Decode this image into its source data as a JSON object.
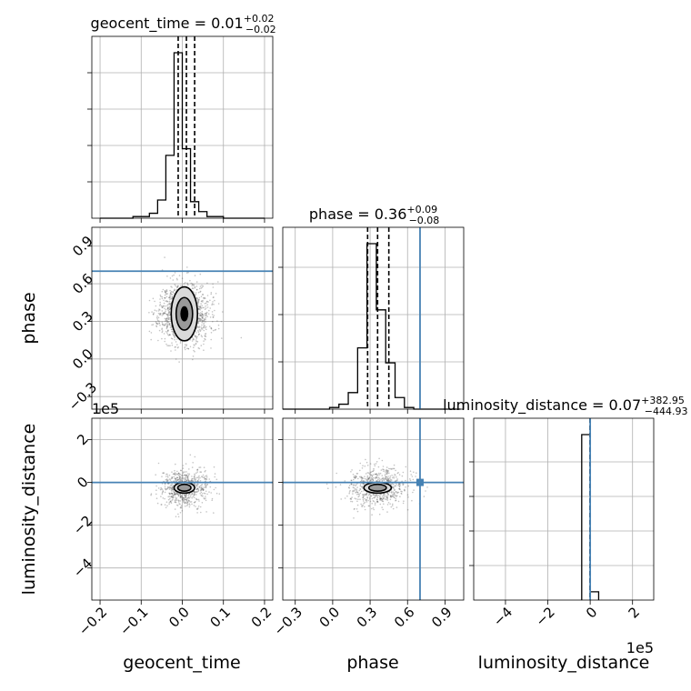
{
  "chart_data": [
    {
      "type": "histogram",
      "panel": "geocent_time-marginal",
      "title_prefix": "geocent_time = 0.01",
      "title_sup": "+0.02",
      "title_sub": "−0.02",
      "xlim": [
        -0.22,
        0.22
      ],
      "bins": [
        -0.2,
        -0.18,
        -0.16,
        -0.14,
        -0.12,
        -0.1,
        -0.08,
        -0.06,
        -0.04,
        -0.02,
        0.0,
        0.02,
        0.04,
        0.06,
        0.08,
        0.1,
        0.12,
        0.14,
        0.16,
        0.18,
        0.2
      ],
      "counts": [
        0,
        0,
        0,
        0,
        0.01,
        0.01,
        0.03,
        0.11,
        0.38,
        1.0,
        0.42,
        0.1,
        0.04,
        0.01,
        0.01,
        0,
        0,
        0,
        0,
        0
      ],
      "quantiles": [
        -0.01,
        0.01,
        0.03
      ]
    },
    {
      "type": "histogram",
      "panel": "phase-marginal",
      "title_prefix": "phase = 0.36",
      "title_sup": "+0.09",
      "title_sub": "−0.08",
      "xlim": [
        -0.4,
        1.05
      ],
      "bins": [
        -0.4,
        -0.325,
        -0.25,
        -0.175,
        -0.1,
        -0.025,
        0.05,
        0.125,
        0.2,
        0.275,
        0.35,
        0.425,
        0.5,
        0.575,
        0.65,
        0.725,
        0.8,
        0.875,
        0.95,
        1.025
      ],
      "counts": [
        0,
        0,
        0,
        0,
        0,
        0.01,
        0.03,
        0.1,
        0.37,
        1.0,
        0.6,
        0.28,
        0.07,
        0.01,
        0,
        0,
        0,
        0,
        0
      ],
      "quantiles": [
        0.28,
        0.36,
        0.45
      ],
      "truth": 0.7
    },
    {
      "type": "histogram",
      "panel": "luminosity_distance-marginal",
      "title_prefix": "luminosity_distance = 0.07",
      "title_sup": "+382.95",
      "title_sub": "−444.93",
      "xlim": [
        -5.5,
        3.0
      ],
      "bins": [
        -0.4,
        0.0,
        0.4
      ],
      "counts": [
        1.0,
        0.05
      ],
      "quantiles": [
        -0.0044,
        1e-05,
        0.0039
      ],
      "truth": 0.0
    },
    {
      "type": "scatter",
      "panel": "phase-vs-geocent_time",
      "xlim": [
        -0.22,
        0.22
      ],
      "ylim": [
        -0.4,
        1.05
      ],
      "center": [
        0.005,
        0.36
      ],
      "contours": [
        [
          0.005,
          0.032,
          0.43
        ],
        [
          0.005,
          0.02,
          0.26
        ],
        [
          0.005,
          0.008,
          0.11
        ]
      ],
      "truth_y": 0.7
    },
    {
      "type": "scatter",
      "panel": "luminosity_distance-vs-geocent_time",
      "xlim": [
        -0.22,
        0.22
      ],
      "ylim": [
        -5.5,
        3.0
      ],
      "center": [
        0.005,
        -0.25
      ],
      "contours": [
        [
          0.005,
          0.025,
          0.5
        ],
        [
          0.005,
          0.016,
          0.32
        ]
      ],
      "truth_y": 0.0
    },
    {
      "type": "scatter",
      "panel": "luminosity_distance-vs-phase",
      "xlim": [
        -0.4,
        1.05
      ],
      "ylim": [
        -5.5,
        3.0
      ],
      "center": [
        0.36,
        -0.25
      ],
      "contours": [
        [
          0.36,
          0.11,
          0.5
        ],
        [
          0.36,
          0.07,
          0.32
        ]
      ],
      "truth_x": 0.7,
      "truth_y": 0.0
    }
  ],
  "axes": {
    "geocent_time": {
      "label": "geocent_time",
      "ticks": [
        -0.2,
        -0.1,
        0.0,
        0.1,
        0.2
      ],
      "tick_labels": [
        "−0.2",
        "−0.1",
        "0.0",
        "0.1",
        "0.2"
      ]
    },
    "phase": {
      "label": "phase",
      "ticks": [
        -0.3,
        0.0,
        0.3,
        0.6,
        0.9
      ],
      "tick_labels": [
        "−0.3",
        "0.0",
        "0.3",
        "0.6",
        "0.9"
      ]
    },
    "luminosity_distance": {
      "label": "luminosity_distance",
      "ticks": [
        -4,
        -2,
        0,
        2
      ],
      "tick_labels": [
        "−4",
        "−2",
        "0",
        "2"
      ],
      "offset_text": "1e5"
    }
  },
  "colors": {
    "truth": "#4682b4",
    "hist": "#000000",
    "points": "#555555",
    "fill_outer": "#d9d9d9",
    "fill_mid": "#9a9a9a",
    "fill_inner": "#000000"
  }
}
